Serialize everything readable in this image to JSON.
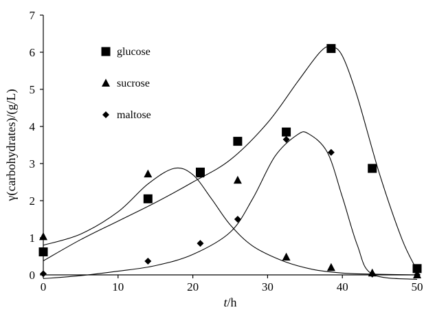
{
  "chart_data": {
    "type": "scatter",
    "title": "",
    "xlabel_italic": "t",
    "xlabel_unit": "/h",
    "ylabel": "γ(carbohydrates)/(g/L)",
    "xlim": [
      0,
      50
    ],
    "ylim": [
      0,
      7
    ],
    "xticks": [
      "0",
      "10",
      "20",
      "30",
      "40",
      "50"
    ],
    "yticks": [
      "0",
      "1",
      "2",
      "3",
      "4",
      "5",
      "6",
      "7"
    ],
    "grid": false,
    "legend_position": "top-left",
    "series": [
      {
        "name": "glucose",
        "marker": "square",
        "points": [
          [
            0,
            0.62
          ],
          [
            14,
            2.05
          ],
          [
            21,
            2.77
          ],
          [
            26,
            3.6
          ],
          [
            32.5,
            3.85
          ],
          [
            38.5,
            6.1
          ],
          [
            44,
            2.87
          ],
          [
            50,
            0.17
          ]
        ],
        "fit": [
          [
            0,
            0.38
          ],
          [
            5,
            0.95
          ],
          [
            10,
            1.45
          ],
          [
            15,
            1.95
          ],
          [
            20,
            2.5
          ],
          [
            25,
            3.1
          ],
          [
            30,
            4.1
          ],
          [
            34,
            5.2
          ],
          [
            37,
            6.0
          ],
          [
            38.5,
            6.15
          ],
          [
            40,
            5.9
          ],
          [
            42,
            4.8
          ],
          [
            45,
            2.7
          ],
          [
            48,
            0.95
          ],
          [
            50,
            0.12
          ]
        ]
      },
      {
        "name": "sucrose",
        "marker": "triangle",
        "points": [
          [
            0,
            1.03
          ],
          [
            14,
            2.72
          ],
          [
            21,
            2.72
          ],
          [
            26,
            2.55
          ],
          [
            32.5,
            0.48
          ],
          [
            38.5,
            0.2
          ],
          [
            44,
            0.05
          ],
          [
            50,
            0.0
          ]
        ],
        "fit": [
          [
            0,
            0.8
          ],
          [
            5,
            1.1
          ],
          [
            10,
            1.7
          ],
          [
            14,
            2.45
          ],
          [
            17.5,
            2.87
          ],
          [
            20,
            2.7
          ],
          [
            22.5,
            2.05
          ],
          [
            25,
            1.35
          ],
          [
            28,
            0.78
          ],
          [
            32,
            0.38
          ],
          [
            36,
            0.15
          ],
          [
            40,
            0.05
          ],
          [
            44,
            0.02
          ],
          [
            50,
            0.0
          ]
        ]
      },
      {
        "name": "maltose",
        "marker": "diamond",
        "points": [
          [
            0,
            0.03
          ],
          [
            14,
            0.37
          ],
          [
            21,
            0.85
          ],
          [
            26,
            1.5
          ],
          [
            32.5,
            3.65
          ],
          [
            38.5,
            3.3
          ],
          [
            44,
            0.02
          ],
          [
            50,
            0.0
          ]
        ],
        "fit": [
          [
            0,
            -0.1
          ],
          [
            5,
            -0.02
          ],
          [
            10,
            0.1
          ],
          [
            15,
            0.25
          ],
          [
            20,
            0.55
          ],
          [
            25,
            1.15
          ],
          [
            28,
            2.05
          ],
          [
            31,
            3.2
          ],
          [
            34,
            3.78
          ],
          [
            35.5,
            3.8
          ],
          [
            38,
            3.3
          ],
          [
            40,
            2.1
          ],
          [
            42,
            0.8
          ],
          [
            44,
            0.02
          ],
          [
            50,
            -0.12
          ]
        ]
      }
    ]
  }
}
